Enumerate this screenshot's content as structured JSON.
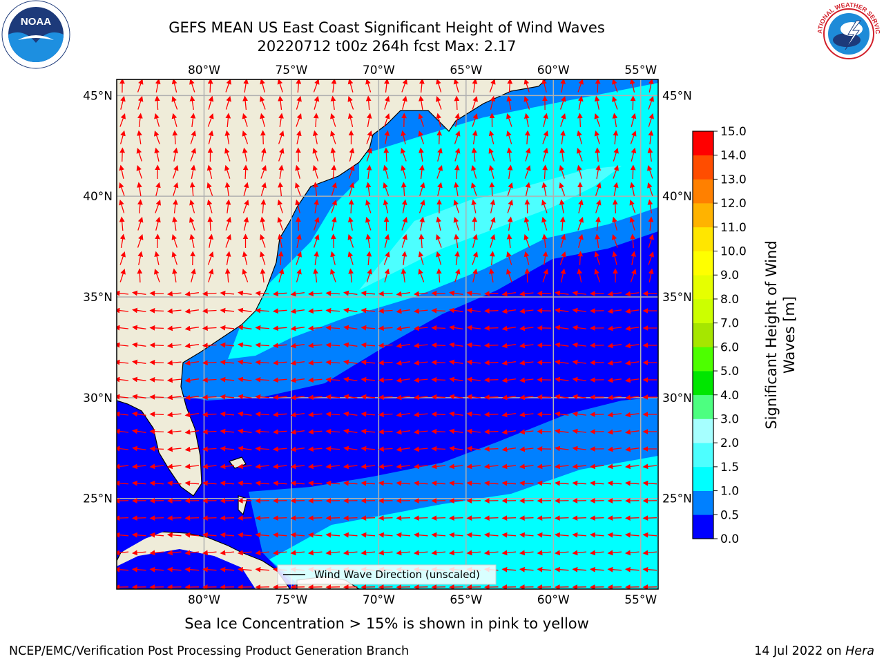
{
  "title": {
    "line1": "GEFS MEAN US East Coast Significant Height of Wind Waves",
    "line2": "20220712 t00z 264h fcst   Max: 2.17"
  },
  "map": {
    "lon_range": [
      -85,
      -54
    ],
    "lat_range": [
      20.5,
      45.8
    ],
    "lon_ticks": [
      -80,
      -75,
      -70,
      -65,
      -60,
      -55
    ],
    "lat_ticks": [
      25,
      30,
      35,
      40,
      45
    ],
    "lon_labels": [
      "80°W",
      "75°W",
      "70°W",
      "65°W",
      "60°W",
      "55°W"
    ],
    "lat_labels": [
      "25°N",
      "30°N",
      "35°N",
      "40°N",
      "45°N"
    ],
    "grid": true,
    "land_color": "#efecd9",
    "arrow_color": "#ff0000",
    "legend_label": "Wind Wave Direction (unscaled)"
  },
  "colorbar": {
    "label_line1": "Significant Height of Wind",
    "label_line2": "Waves [m]",
    "ticks": [
      "0.0",
      "0.5",
      "1.0",
      "1.5",
      "2.0",
      "3.0",
      "4.0",
      "5.0",
      "6.0",
      "7.0",
      "8.0",
      "9.0",
      "10.0",
      "11.0",
      "12.0",
      "13.0",
      "14.0",
      "15.0"
    ],
    "colors": [
      "#0000ff",
      "#0080ff",
      "#00ffff",
      "#4dffff",
      "#a6ffff",
      "#4dff80",
      "#00e600",
      "#4dff00",
      "#a6e600",
      "#ccff00",
      "#e6ff00",
      "#ffff00",
      "#ffe600",
      "#ffb300",
      "#ff8000",
      "#ff4d00",
      "#ff0000"
    ]
  },
  "subtitle": "Sea Ice Concentration > 15% is shown in pink to yellow",
  "footer": {
    "branch": "NCEP/EMC/Verification Post Processing Product Generation Branch",
    "date": "14 Jul 2022 on ",
    "machine": "Hera"
  },
  "logos": {
    "noaa_text": "NOAA",
    "nws_text": "NATIONAL WEATHER SERVICE"
  }
}
